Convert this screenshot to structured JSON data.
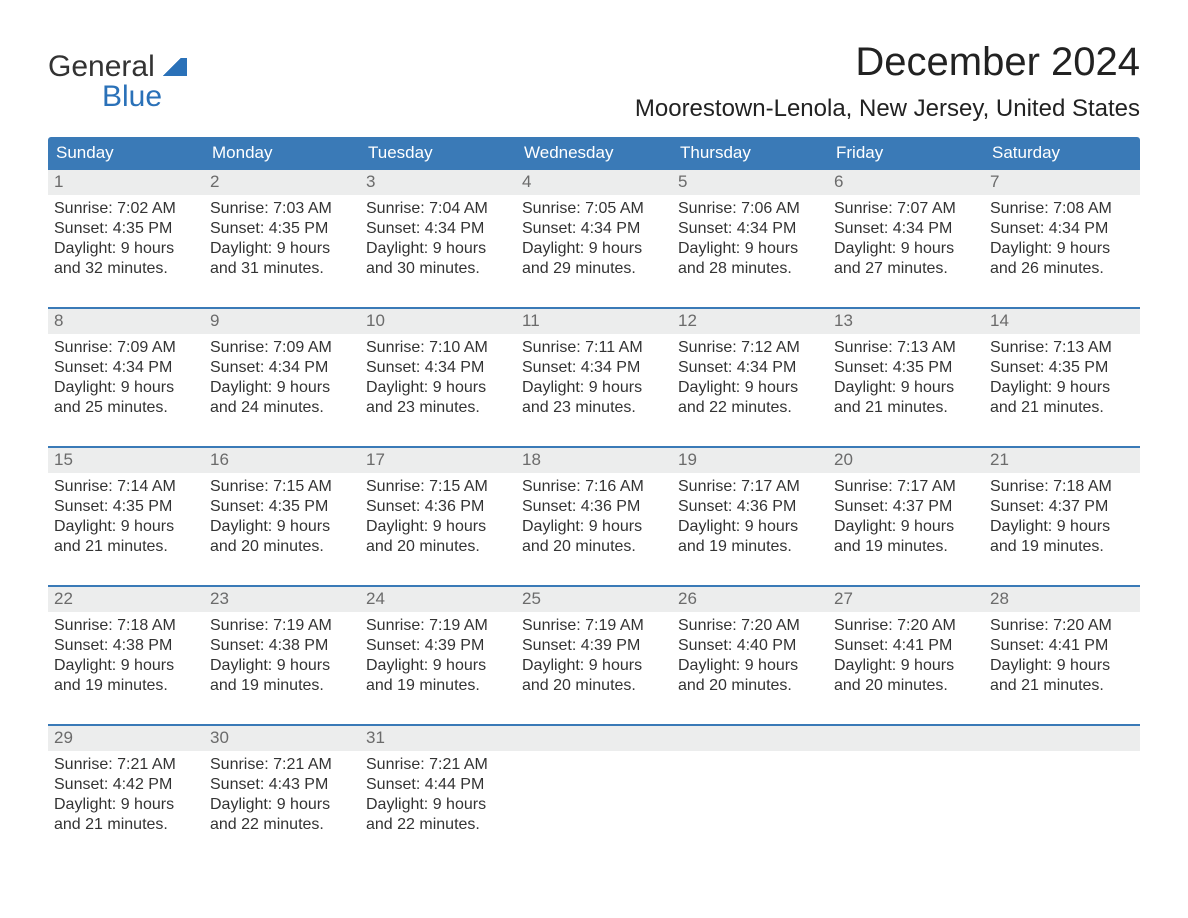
{
  "logo": {
    "word1": "General",
    "word2": "Blue"
  },
  "title": "December 2024",
  "subtitle": "Moorestown-Lenola, New Jersey, United States",
  "colors": {
    "header_bg": "#3a7ab7",
    "header_text": "#ffffff",
    "daynum_bg": "#eceded",
    "daynum_text": "#6b6b6b",
    "body_text": "#333333",
    "accent_border": "#3a7ab7",
    "logo_blue": "#2a71b8",
    "background": "#ffffff"
  },
  "weekdays": [
    "Sunday",
    "Monday",
    "Tuesday",
    "Wednesday",
    "Thursday",
    "Friday",
    "Saturday"
  ],
  "weeks": [
    [
      {
        "n": "1",
        "sr": "7:02 AM",
        "ss": "4:35 PM",
        "dl": "9 hours and 32 minutes."
      },
      {
        "n": "2",
        "sr": "7:03 AM",
        "ss": "4:35 PM",
        "dl": "9 hours and 31 minutes."
      },
      {
        "n": "3",
        "sr": "7:04 AM",
        "ss": "4:34 PM",
        "dl": "9 hours and 30 minutes."
      },
      {
        "n": "4",
        "sr": "7:05 AM",
        "ss": "4:34 PM",
        "dl": "9 hours and 29 minutes."
      },
      {
        "n": "5",
        "sr": "7:06 AM",
        "ss": "4:34 PM",
        "dl": "9 hours and 28 minutes."
      },
      {
        "n": "6",
        "sr": "7:07 AM",
        "ss": "4:34 PM",
        "dl": "9 hours and 27 minutes."
      },
      {
        "n": "7",
        "sr": "7:08 AM",
        "ss": "4:34 PM",
        "dl": "9 hours and 26 minutes."
      }
    ],
    [
      {
        "n": "8",
        "sr": "7:09 AM",
        "ss": "4:34 PM",
        "dl": "9 hours and 25 minutes."
      },
      {
        "n": "9",
        "sr": "7:09 AM",
        "ss": "4:34 PM",
        "dl": "9 hours and 24 minutes."
      },
      {
        "n": "10",
        "sr": "7:10 AM",
        "ss": "4:34 PM",
        "dl": "9 hours and 23 minutes."
      },
      {
        "n": "11",
        "sr": "7:11 AM",
        "ss": "4:34 PM",
        "dl": "9 hours and 23 minutes."
      },
      {
        "n": "12",
        "sr": "7:12 AM",
        "ss": "4:34 PM",
        "dl": "9 hours and 22 minutes."
      },
      {
        "n": "13",
        "sr": "7:13 AM",
        "ss": "4:35 PM",
        "dl": "9 hours and 21 minutes."
      },
      {
        "n": "14",
        "sr": "7:13 AM",
        "ss": "4:35 PM",
        "dl": "9 hours and 21 minutes."
      }
    ],
    [
      {
        "n": "15",
        "sr": "7:14 AM",
        "ss": "4:35 PM",
        "dl": "9 hours and 21 minutes."
      },
      {
        "n": "16",
        "sr": "7:15 AM",
        "ss": "4:35 PM",
        "dl": "9 hours and 20 minutes."
      },
      {
        "n": "17",
        "sr": "7:15 AM",
        "ss": "4:36 PM",
        "dl": "9 hours and 20 minutes."
      },
      {
        "n": "18",
        "sr": "7:16 AM",
        "ss": "4:36 PM",
        "dl": "9 hours and 20 minutes."
      },
      {
        "n": "19",
        "sr": "7:17 AM",
        "ss": "4:36 PM",
        "dl": "9 hours and 19 minutes."
      },
      {
        "n": "20",
        "sr": "7:17 AM",
        "ss": "4:37 PM",
        "dl": "9 hours and 19 minutes."
      },
      {
        "n": "21",
        "sr": "7:18 AM",
        "ss": "4:37 PM",
        "dl": "9 hours and 19 minutes."
      }
    ],
    [
      {
        "n": "22",
        "sr": "7:18 AM",
        "ss": "4:38 PM",
        "dl": "9 hours and 19 minutes."
      },
      {
        "n": "23",
        "sr": "7:19 AM",
        "ss": "4:38 PM",
        "dl": "9 hours and 19 minutes."
      },
      {
        "n": "24",
        "sr": "7:19 AM",
        "ss": "4:39 PM",
        "dl": "9 hours and 19 minutes."
      },
      {
        "n": "25",
        "sr": "7:19 AM",
        "ss": "4:39 PM",
        "dl": "9 hours and 20 minutes."
      },
      {
        "n": "26",
        "sr": "7:20 AM",
        "ss": "4:40 PM",
        "dl": "9 hours and 20 minutes."
      },
      {
        "n": "27",
        "sr": "7:20 AM",
        "ss": "4:41 PM",
        "dl": "9 hours and 20 minutes."
      },
      {
        "n": "28",
        "sr": "7:20 AM",
        "ss": "4:41 PM",
        "dl": "9 hours and 21 minutes."
      }
    ],
    [
      {
        "n": "29",
        "sr": "7:21 AM",
        "ss": "4:42 PM",
        "dl": "9 hours and 21 minutes."
      },
      {
        "n": "30",
        "sr": "7:21 AM",
        "ss": "4:43 PM",
        "dl": "9 hours and 22 minutes."
      },
      {
        "n": "31",
        "sr": "7:21 AM",
        "ss": "4:44 PM",
        "dl": "9 hours and 22 minutes."
      },
      null,
      null,
      null,
      null
    ]
  ],
  "labels": {
    "sunrise": "Sunrise: ",
    "sunset": "Sunset: ",
    "daylight": "Daylight: "
  }
}
